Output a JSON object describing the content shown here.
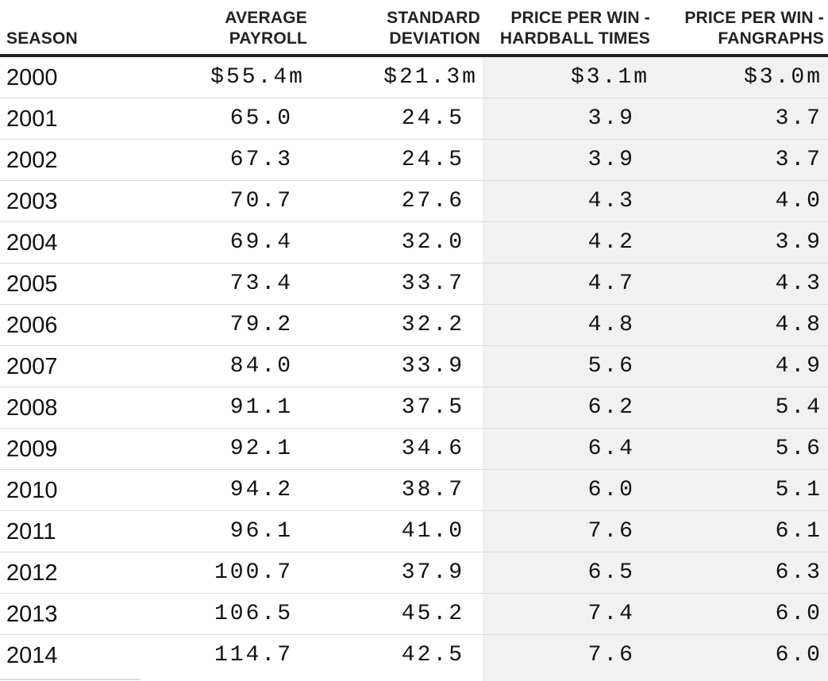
{
  "table": {
    "columns": [
      {
        "label_line1": "",
        "label_line2": "SEASON"
      },
      {
        "label_line1": "AVERAGE",
        "label_line2": "PAYROLL"
      },
      {
        "label_line1": "STANDARD",
        "label_line2": "DEVIATION"
      },
      {
        "label_line1": "PRICE PER WIN -",
        "label_line2": "HARDBALL TIMES"
      },
      {
        "label_line1": "PRICE PER WIN -",
        "label_line2": "FANGRAPHS"
      }
    ],
    "rows": [
      {
        "season": "2000",
        "avg_payroll": "$55.4m",
        "std_dev": "$21.3m",
        "ppw_hardball": "$3.1m",
        "ppw_fangraphs": "$3.0m"
      },
      {
        "season": "2001",
        "avg_payroll": "65.0",
        "std_dev": "24.5",
        "ppw_hardball": "3.9",
        "ppw_fangraphs": "3.7"
      },
      {
        "season": "2002",
        "avg_payroll": "67.3",
        "std_dev": "24.5",
        "ppw_hardball": "3.9",
        "ppw_fangraphs": "3.7"
      },
      {
        "season": "2003",
        "avg_payroll": "70.7",
        "std_dev": "27.6",
        "ppw_hardball": "4.3",
        "ppw_fangraphs": "4.0"
      },
      {
        "season": "2004",
        "avg_payroll": "69.4",
        "std_dev": "32.0",
        "ppw_hardball": "4.2",
        "ppw_fangraphs": "3.9"
      },
      {
        "season": "2005",
        "avg_payroll": "73.4",
        "std_dev": "33.7",
        "ppw_hardball": "4.7",
        "ppw_fangraphs": "4.3"
      },
      {
        "season": "2006",
        "avg_payroll": "79.2",
        "std_dev": "32.2",
        "ppw_hardball": "4.8",
        "ppw_fangraphs": "4.8"
      },
      {
        "season": "2007",
        "avg_payroll": "84.0",
        "std_dev": "33.9",
        "ppw_hardball": "5.6",
        "ppw_fangraphs": "4.9"
      },
      {
        "season": "2008",
        "avg_payroll": "91.1",
        "std_dev": "37.5",
        "ppw_hardball": "6.2",
        "ppw_fangraphs": "5.4"
      },
      {
        "season": "2009",
        "avg_payroll": "92.1",
        "std_dev": "34.6",
        "ppw_hardball": "6.4",
        "ppw_fangraphs": "5.6"
      },
      {
        "season": "2010",
        "avg_payroll": "94.2",
        "std_dev": "38.7",
        "ppw_hardball": "6.0",
        "ppw_fangraphs": "5.1"
      },
      {
        "season": "2011",
        "avg_payroll": "96.1",
        "std_dev": "41.0",
        "ppw_hardball": "7.6",
        "ppw_fangraphs": "6.1"
      },
      {
        "season": "2012",
        "avg_payroll": "100.7",
        "std_dev": "37.9",
        "ppw_hardball": "6.5",
        "ppw_fangraphs": "6.3"
      },
      {
        "season": "2013",
        "avg_payroll": "106.5",
        "std_dev": "45.2",
        "ppw_hardball": "7.4",
        "ppw_fangraphs": "6.0"
      },
      {
        "season": "2014",
        "avg_payroll": "114.7",
        "std_dev": "42.5",
        "ppw_hardball": "7.6",
        "ppw_fangraphs": "6.0"
      }
    ]
  },
  "colors": {
    "header_rule": "#222222",
    "row_rule": "#dcdcdc",
    "shaded_columns_bg": "#f1f1f1",
    "text": "#111111"
  }
}
